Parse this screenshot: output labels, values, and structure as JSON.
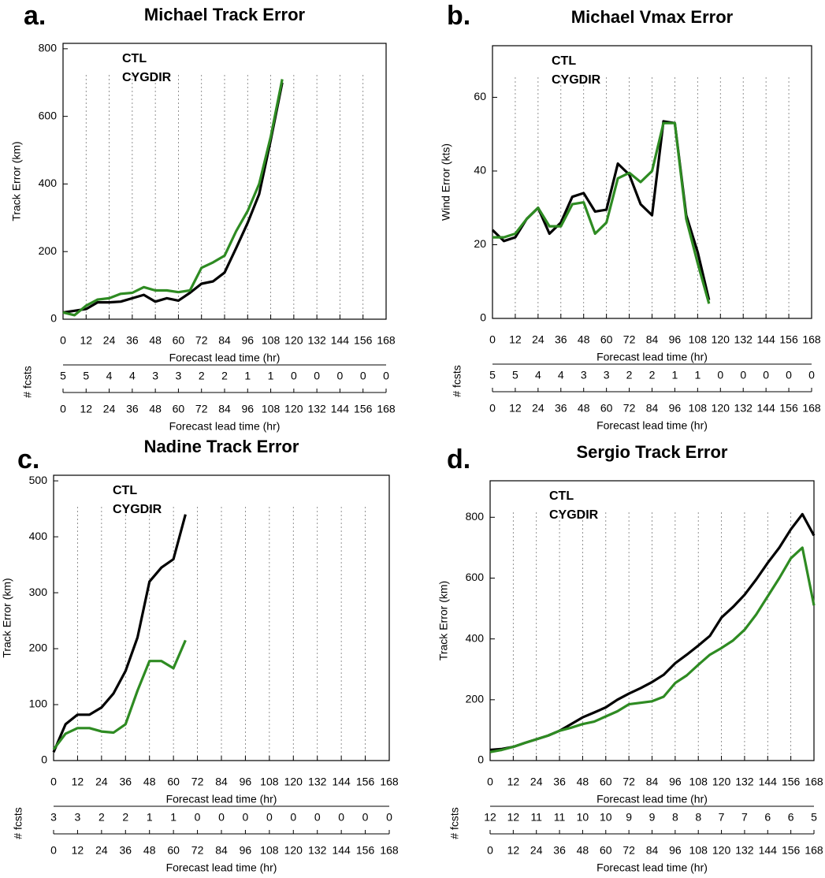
{
  "chart_data": [
    {
      "type": "line",
      "panel": "a.",
      "title": "Michael Track Error",
      "ylabel": "Track Error (km)",
      "xlabel": "Forecast lead time (hr)",
      "x": [
        0,
        6,
        12,
        18,
        24,
        30,
        36,
        42,
        48,
        54,
        60,
        66,
        72,
        78,
        84,
        90,
        96,
        102,
        108,
        114
      ],
      "series": [
        {
          "name": "CTL",
          "color": "#000000",
          "values": [
            20,
            25,
            30,
            50,
            50,
            52,
            62,
            72,
            52,
            62,
            55,
            78,
            105,
            112,
            138,
            210,
            285,
            370,
            530,
            700
          ]
        },
        {
          "name": "CYGDIR",
          "color": "#2e8b22",
          "values": [
            20,
            12,
            40,
            58,
            62,
            75,
            78,
            95,
            85,
            85,
            80,
            85,
            152,
            168,
            188,
            260,
            320,
            400,
            540,
            710
          ]
        }
      ],
      "xlim": [
        0,
        168
      ],
      "xticks": [
        0,
        12,
        24,
        36,
        48,
        60,
        72,
        84,
        96,
        108,
        120,
        132,
        144,
        156,
        168
      ],
      "ylim": [
        0,
        816
      ],
      "yticks": [
        0,
        200,
        400,
        600,
        800
      ],
      "xgrid": true,
      "fcsts": {
        "label": "# fcsts",
        "xlabel": "Forecast lead time (hr)",
        "values": [
          5,
          5,
          4,
          4,
          3,
          3,
          2,
          2,
          1,
          1,
          0,
          0,
          0,
          0,
          0
        ]
      }
    },
    {
      "type": "line",
      "panel": "b.",
      "title": "Michael Vmax Error",
      "ylabel": "Wind Error (kts)",
      "xlabel": "Forecast lead time (hr)",
      "x": [
        0,
        6,
        12,
        18,
        24,
        30,
        36,
        42,
        48,
        54,
        60,
        66,
        72,
        78,
        84,
        90,
        96,
        102,
        108,
        114
      ],
      "series": [
        {
          "name": "CTL",
          "color": "#000000",
          "values": [
            24,
            21,
            22,
            27,
            30,
            23,
            26,
            33,
            34,
            29,
            29.5,
            42,
            39,
            31,
            28,
            53.5,
            53,
            28,
            18,
            5
          ]
        },
        {
          "name": "CYGDIR",
          "color": "#2e8b22",
          "values": [
            22,
            22,
            23,
            27,
            30,
            25,
            25,
            31,
            31.5,
            23,
            26,
            38,
            39.5,
            37,
            40,
            53,
            53,
            27,
            15,
            4
          ]
        }
      ],
      "xlim": [
        0,
        168
      ],
      "xticks": [
        0,
        12,
        24,
        36,
        48,
        60,
        72,
        84,
        96,
        108,
        120,
        132,
        144,
        156,
        168
      ],
      "ylim": [
        0,
        74
      ],
      "yticks": [
        0,
        20,
        40,
        60
      ],
      "xgrid": true,
      "fcsts": {
        "label": "# fcsts",
        "xlabel": "Forecast lead time (hr)",
        "values": [
          5,
          5,
          4,
          4,
          3,
          3,
          2,
          2,
          1,
          1,
          0,
          0,
          0,
          0,
          0
        ]
      }
    },
    {
      "type": "line",
      "panel": "c.",
      "title": "Nadine Track Error",
      "ylabel": "Track Error (km)",
      "xlabel": "Forecast lead time (hr)",
      "x": [
        0,
        6,
        12,
        18,
        24,
        30,
        36,
        42,
        48,
        54,
        60,
        66
      ],
      "series": [
        {
          "name": "CTL",
          "color": "#000000",
          "values": [
            15,
            65,
            82,
            82,
            95,
            120,
            160,
            220,
            320,
            345,
            360,
            440
          ]
        },
        {
          "name": "CYGDIR",
          "color": "#2e8b22",
          "values": [
            20,
            48,
            58,
            58,
            52,
            50,
            65,
            125,
            178,
            178,
            165,
            215
          ]
        }
      ],
      "xlim": [
        0,
        168
      ],
      "xticks": [
        0,
        12,
        24,
        36,
        48,
        60,
        72,
        84,
        96,
        108,
        120,
        132,
        144,
        156,
        168
      ],
      "ylim": [
        0,
        510
      ],
      "yticks": [
        0,
        100,
        200,
        300,
        400,
        500
      ],
      "xgrid": true,
      "fcsts": {
        "label": "# fcsts",
        "xlabel": "Forecast lead time (hr)",
        "values": [
          3,
          3,
          2,
          2,
          1,
          1,
          0,
          0,
          0,
          0,
          0,
          0,
          0,
          0,
          0
        ]
      }
    },
    {
      "type": "line",
      "panel": "d.",
      "title": "Sergio Track Error",
      "ylabel": "Track Error (km)",
      "xlabel": "Forecast lead time (hr)",
      "x": [
        0,
        6,
        12,
        18,
        24,
        30,
        36,
        42,
        48,
        54,
        60,
        66,
        72,
        78,
        84,
        90,
        96,
        102,
        108,
        114,
        120,
        126,
        132,
        138,
        144,
        150,
        156,
        162,
        168
      ],
      "series": [
        {
          "name": "CTL",
          "color": "#000000",
          "values": [
            35,
            38,
            45,
            58,
            70,
            82,
            98,
            120,
            142,
            158,
            175,
            200,
            220,
            238,
            258,
            282,
            320,
            348,
            378,
            410,
            470,
            505,
            545,
            595,
            650,
            700,
            760,
            810,
            740
          ]
        },
        {
          "name": "CYGDIR",
          "color": "#2e8b22",
          "values": [
            28,
            35,
            45,
            58,
            70,
            82,
            98,
            108,
            120,
            128,
            145,
            162,
            185,
            190,
            195,
            210,
            255,
            280,
            315,
            348,
            370,
            395,
            430,
            480,
            540,
            600,
            665,
            700,
            510
          ]
        }
      ],
      "xlim": [
        0,
        168
      ],
      "xticks": [
        0,
        12,
        24,
        36,
        48,
        60,
        72,
        84,
        96,
        108,
        120,
        132,
        144,
        156,
        168
      ],
      "ylim": [
        0,
        920
      ],
      "yticks": [
        0,
        200,
        400,
        600,
        800
      ],
      "xgrid": true,
      "fcsts": {
        "label": "# fcsts",
        "xlabel": "Forecast lead time (hr)",
        "values": [
          12,
          12,
          11,
          11,
          10,
          10,
          9,
          9,
          8,
          8,
          7,
          7,
          6,
          6,
          5
        ]
      }
    }
  ]
}
